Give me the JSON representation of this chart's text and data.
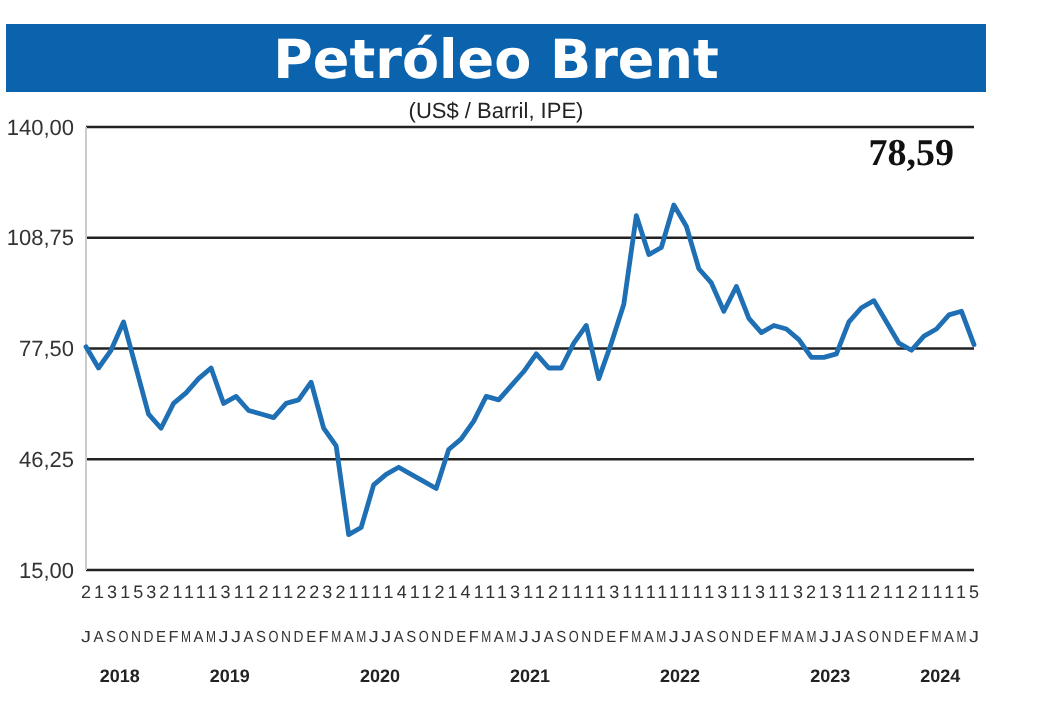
{
  "chart_data": {
    "type": "line",
    "title": "Petróleo Brent",
    "subtitle": "(US$ / Barril, IPE)",
    "annotations": [
      "78,59",
      "213153211113112112232111141121411131121111311111111311311321311211211115",
      "2018",
      "2019",
      "2020",
      "2021",
      "2022",
      "2023",
      "2024"
    ],
    "categories": [
      "J",
      "A",
      "S",
      "O",
      "N",
      "D",
      "E",
      "F",
      "M",
      "A",
      "M",
      "J",
      "J",
      "A",
      "S",
      "O",
      "N",
      "D",
      "E",
      "F",
      "M",
      "A",
      "M",
      "J",
      "J",
      "A",
      "S",
      "O",
      "N",
      "D",
      "E",
      "F",
      "M",
      "A",
      "M",
      "J",
      "J",
      "A",
      "S",
      "O",
      "N",
      "D",
      "E",
      "F",
      "M",
      "A",
      "M",
      "J",
      "J",
      "A",
      "S",
      "O",
      "N",
      "D",
      "E",
      "F",
      "M",
      "A",
      "M",
      "J",
      "J",
      "A",
      "S",
      "O",
      "N",
      "D",
      "E",
      "F",
      "M",
      "A",
      "M",
      "J"
    ],
    "series": [
      {
        "color": "#1f6fb5",
        "values": [
          78,
          72,
          77,
          85,
          72,
          59,
          55,
          62,
          65,
          69,
          72,
          62,
          64,
          60,
          59,
          58,
          62,
          63,
          68,
          55,
          50,
          25,
          27,
          39,
          42,
          44,
          42,
          40,
          38,
          49,
          52,
          57,
          64,
          63,
          67,
          71,
          76,
          72,
          72,
          79,
          84,
          69,
          79,
          90,
          115,
          104,
          106,
          118,
          112,
          100,
          96,
          88,
          95,
          86,
          82,
          84,
          83,
          80,
          75,
          75,
          76,
          85,
          89,
          91,
          85,
          79,
          77,
          81,
          83,
          87,
          88,
          78.6
        ]
      }
    ],
    "ylim": [
      15,
      140
    ],
    "yticks": [
      {
        "value": 15,
        "label": "15,00"
      },
      {
        "value": 46.25,
        "label": "46,25"
      },
      {
        "value": 77.5,
        "label": "77,50"
      },
      {
        "value": 108.75,
        "label": "108,75"
      },
      {
        "value": 140,
        "label": "140,00"
      }
    ],
    "grid": "y"
  }
}
